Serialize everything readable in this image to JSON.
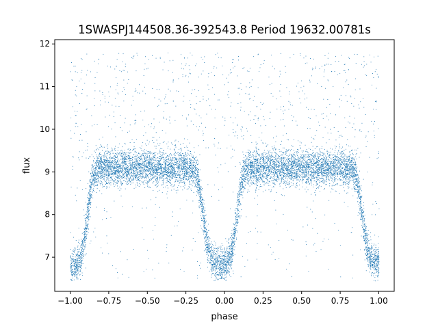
{
  "chart_data": {
    "type": "scatter",
    "title": "1SWASPJ144508.36-392543.8 Period 19632.00781s",
    "xlabel": "phase",
    "ylabel": "flux",
    "xlim": [
      -1.1,
      1.1
    ],
    "ylim": [
      6.2,
      12.1
    ],
    "xticks": [
      -1.0,
      -0.75,
      -0.5,
      -0.25,
      0.0,
      0.25,
      0.5,
      0.75,
      1.0
    ],
    "xtick_labels": [
      "−1.00",
      "−0.75",
      "−0.50",
      "−0.25",
      "0.00",
      "0.25",
      "0.50",
      "0.75",
      "1.00"
    ],
    "yticks": [
      7,
      8,
      9,
      10,
      11,
      12
    ],
    "ytick_labels": [
      "7",
      "8",
      "9",
      "10",
      "11",
      "12"
    ],
    "grid": false,
    "legend": "none",
    "point_color": "#1f77b4",
    "series": [
      {
        "name": "",
        "baseline_flux": 9.1,
        "eclipses": [
          {
            "center_phase": -1.0,
            "min_flux": 6.8
          },
          {
            "center_phase": -0.03,
            "min_flux": 6.85
          },
          {
            "center_phase": 1.0,
            "min_flux": 6.9
          }
        ],
        "sample_points": [
          {
            "x": -1.0,
            "y": 6.8
          },
          {
            "x": -0.9,
            "y": 8.3
          },
          {
            "x": -0.75,
            "y": 9.1
          },
          {
            "x": -0.5,
            "y": 9.1
          },
          {
            "x": -0.25,
            "y": 9.0
          },
          {
            "x": -0.15,
            "y": 8.3
          },
          {
            "x": -0.03,
            "y": 6.85
          },
          {
            "x": 0.08,
            "y": 8.2
          },
          {
            "x": 0.25,
            "y": 9.1
          },
          {
            "x": 0.5,
            "y": 9.1
          },
          {
            "x": 0.75,
            "y": 9.0
          },
          {
            "x": 0.88,
            "y": 8.3
          },
          {
            "x": 1.0,
            "y": 6.9
          }
        ]
      }
    ]
  }
}
